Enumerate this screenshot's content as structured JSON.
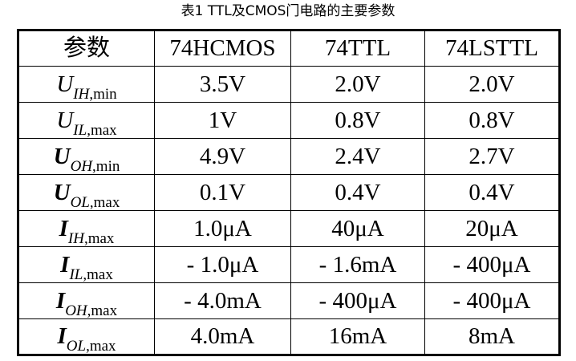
{
  "caption": "表1 TTL及CMOS门电路的主要参数",
  "headers": [
    "参数",
    "74HCMOS",
    "74TTL",
    "74LSTTL"
  ],
  "rows": [
    {
      "main": "U",
      "sub": "IH",
      "suffix": ",min",
      "bold": false,
      "values": [
        "3.5V",
        "2.0V",
        "2.0V"
      ]
    },
    {
      "main": "U",
      "sub": "IL",
      "suffix": ",max",
      "bold": false,
      "values": [
        "1V",
        "0.8V",
        "0.8V"
      ]
    },
    {
      "main": "U",
      "sub": "OH",
      "suffix": ",min",
      "bold": true,
      "values": [
        "4.9V",
        "2.4V",
        "2.7V"
      ]
    },
    {
      "main": "U",
      "sub": "OL",
      "suffix": ",max",
      "bold": true,
      "values": [
        "0.1V",
        "0.4V",
        "0.4V"
      ]
    },
    {
      "main": "I",
      "sub": "IH",
      "suffix": ",max",
      "bold": true,
      "values": [
        "1.0μA",
        "40μA",
        "20μA"
      ]
    },
    {
      "main": "I",
      "sub": "IL",
      "suffix": ",max",
      "bold": true,
      "values": [
        "- 1.0μA",
        "- 1.6mA",
        "- 400μA"
      ]
    },
    {
      "main": "I",
      "sub": "OH",
      "suffix": ",max",
      "bold": true,
      "values": [
        "- 4.0mA",
        "- 400μA",
        "- 400μA"
      ]
    },
    {
      "main": "I",
      "sub": "OL",
      "suffix": ",max",
      "bold": true,
      "values": [
        "4.0mA",
        "16mA",
        "8mA"
      ]
    }
  ]
}
